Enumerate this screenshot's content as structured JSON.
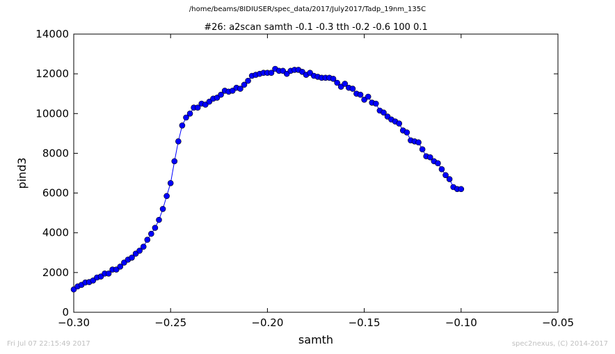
{
  "figure": {
    "suptitle": "/home/beams/8IDIUSER/spec_data/2017/July2017/Tadp_19nm_135C",
    "footer_left": "Fri Jul 07 22:15:49 2017",
    "footer_right": "spec2nexus, (C) 2014-2017"
  },
  "chart_data": {
    "type": "line",
    "title": "#26: a2scan  samth -0.1 -0.3  tth -0.2 -0.6  100 0.1",
    "xlabel": "samth",
    "ylabel": "pind3",
    "xlim": [
      -0.3,
      -0.05
    ],
    "ylim": [
      0,
      14000
    ],
    "xticks": [
      -0.3,
      -0.25,
      -0.2,
      -0.15,
      -0.1,
      -0.05
    ],
    "xtick_labels": [
      "−0.30",
      "−0.25",
      "−0.20",
      "−0.15",
      "−0.10",
      "−0.05"
    ],
    "yticks": [
      0,
      2000,
      4000,
      6000,
      8000,
      10000,
      12000,
      14000
    ],
    "ytick_labels": [
      "0",
      "2000",
      "4000",
      "6000",
      "8000",
      "10000",
      "12000",
      "14000"
    ],
    "grid": false,
    "color": "#0000ff",
    "marker": "circle",
    "x": [
      -0.3,
      -0.298,
      -0.296,
      -0.294,
      -0.292,
      -0.29,
      -0.288,
      -0.286,
      -0.284,
      -0.282,
      -0.28,
      -0.278,
      -0.276,
      -0.274,
      -0.272,
      -0.27,
      -0.268,
      -0.266,
      -0.264,
      -0.262,
      -0.26,
      -0.258,
      -0.256,
      -0.254,
      -0.252,
      -0.25,
      -0.248,
      -0.246,
      -0.244,
      -0.242,
      -0.24,
      -0.238,
      -0.236,
      -0.234,
      -0.232,
      -0.23,
      -0.228,
      -0.226,
      -0.224,
      -0.222,
      -0.22,
      -0.218,
      -0.216,
      -0.214,
      -0.212,
      -0.21,
      -0.208,
      -0.206,
      -0.204,
      -0.202,
      -0.2,
      -0.198,
      -0.196,
      -0.194,
      -0.192,
      -0.19,
      -0.188,
      -0.186,
      -0.184,
      -0.182,
      -0.18,
      -0.178,
      -0.176,
      -0.174,
      -0.172,
      -0.17,
      -0.168,
      -0.166,
      -0.164,
      -0.162,
      -0.16,
      -0.158,
      -0.156,
      -0.154,
      -0.152,
      -0.15,
      -0.148,
      -0.146,
      -0.144,
      -0.142,
      -0.14,
      -0.138,
      -0.136,
      -0.134,
      -0.132,
      -0.13,
      -0.128,
      -0.126,
      -0.124,
      -0.122,
      -0.12,
      -0.118,
      -0.116,
      -0.114,
      -0.112,
      -0.11,
      -0.108,
      -0.106,
      -0.104,
      -0.102,
      -0.1
    ],
    "y": [
      1150,
      1300,
      1380,
      1500,
      1520,
      1600,
      1750,
      1800,
      1950,
      1950,
      2150,
      2150,
      2300,
      2500,
      2650,
      2750,
      2950,
      3100,
      3300,
      3650,
      3950,
      4250,
      4650,
      5200,
      5850,
      6500,
      7600,
      8600,
      9400,
      9800,
      10000,
      10300,
      10300,
      10500,
      10450,
      10600,
      10750,
      10800,
      10950,
      11150,
      11100,
      11150,
      11300,
      11250,
      11450,
      11650,
      11900,
      11950,
      12000,
      12050,
      12050,
      12050,
      12250,
      12150,
      12150,
      12000,
      12150,
      12200,
      12200,
      12100,
      11950,
      12050,
      11900,
      11850,
      11800,
      11800,
      11800,
      11750,
      11550,
      11350,
      11500,
      11300,
      11250,
      11000,
      10950,
      10700,
      10850,
      10550,
      10500,
      10150,
      10050,
      9850,
      9700,
      9600,
      9500,
      9150,
      9050,
      8650,
      8600,
      8550,
      8200,
      7850,
      7800,
      7600,
      7500,
      7200,
      6900,
      6700,
      6300,
      6200,
      6200
    ]
  }
}
